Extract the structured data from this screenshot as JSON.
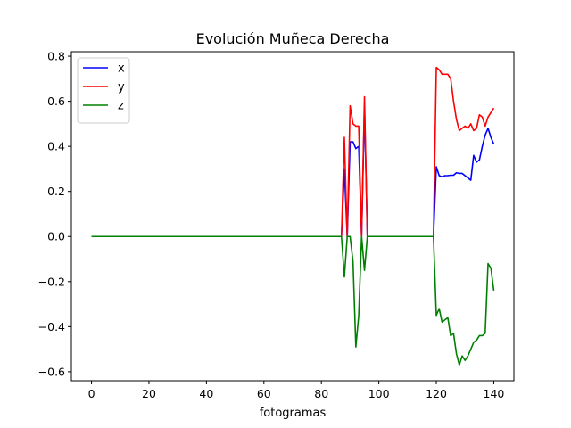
{
  "chart_data": {
    "type": "line",
    "title": "Evolución Muñeca Derecha",
    "xlabel": "fotogramas",
    "ylabel": "",
    "xlim": [
      -7,
      147
    ],
    "ylim": [
      -0.64,
      0.82
    ],
    "xticks": [
      0,
      20,
      40,
      60,
      80,
      100,
      120,
      140
    ],
    "xtick_labels": [
      "0",
      "20",
      "40",
      "60",
      "80",
      "100",
      "120",
      "140"
    ],
    "yticks": [
      -0.6,
      -0.4,
      -0.2,
      0.0,
      0.2,
      0.4,
      0.6,
      0.8
    ],
    "ytick_labels": [
      "−0.6",
      "−0.4",
      "−0.2",
      "0.0",
      "0.2",
      "0.4",
      "0.6",
      "0.8"
    ],
    "grid": false,
    "legend_position": "top-left",
    "x": [
      0,
      87,
      88,
      89,
      90,
      91,
      92,
      93,
      94,
      95,
      96,
      97,
      98,
      119,
      120,
      121,
      122,
      123,
      124,
      125,
      126,
      127,
      128,
      129,
      130,
      131,
      132,
      133,
      134,
      135,
      136,
      137,
      138,
      139,
      140
    ],
    "series": [
      {
        "name": "x",
        "color": "#0000ff",
        "values": [
          0,
          0,
          0.3,
          0,
          0.42,
          0.42,
          0.39,
          0.4,
          0,
          0.58,
          0,
          0,
          0,
          0,
          0.31,
          0.27,
          0.265,
          0.27,
          0.27,
          0.272,
          0.272,
          0.283,
          0.28,
          0.28,
          0.27,
          0.26,
          0.25,
          0.36,
          0.33,
          0.34,
          0.4,
          0.45,
          0.48,
          0.44,
          0.41
        ]
      },
      {
        "name": "y",
        "color": "#ff0000",
        "values": [
          0,
          0,
          0.44,
          0,
          0.58,
          0.5,
          0.49,
          0.49,
          0,
          0.62,
          0,
          0,
          0,
          0,
          0.75,
          0.74,
          0.72,
          0.72,
          0.72,
          0.7,
          0.6,
          0.52,
          0.47,
          0.48,
          0.49,
          0.48,
          0.5,
          0.47,
          0.48,
          0.54,
          0.53,
          0.49,
          0.53,
          0.55,
          0.57
        ]
      },
      {
        "name": "z",
        "color": "#008000",
        "values": [
          0,
          0,
          -0.18,
          0,
          0,
          -0.11,
          -0.49,
          -0.35,
          0,
          -0.15,
          0,
          0,
          0,
          0,
          -0.35,
          -0.32,
          -0.38,
          -0.37,
          -0.36,
          -0.44,
          -0.43,
          -0.52,
          -0.57,
          -0.53,
          -0.55,
          -0.53,
          -0.5,
          -0.47,
          -0.46,
          -0.44,
          -0.44,
          -0.43,
          -0.12,
          -0.14,
          -0.24
        ]
      }
    ]
  }
}
